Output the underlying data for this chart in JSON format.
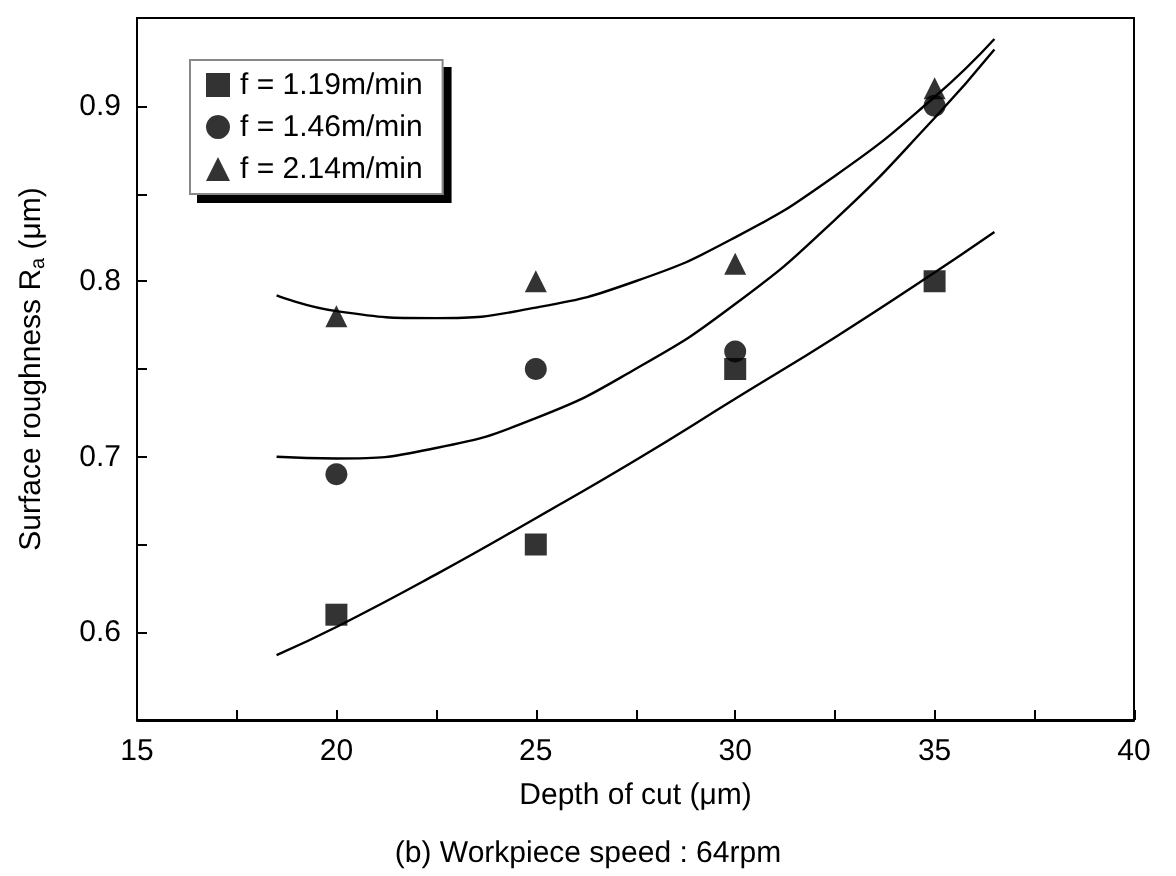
{
  "chart_data": {
    "type": "scatter",
    "xlabel": "Depth of cut (μm)",
    "ylabel": "Surface roughness R$_{a}$ (μm)",
    "annotations": [
      "(b) Workpiece speed : 64rpm"
    ],
    "xlim": [
      15,
      40
    ],
    "xticks": [
      15,
      {
        "value": 17.5,
        "label": null
      },
      20,
      {
        "value": 22.5,
        "label": null
      },
      25,
      {
        "value": 27.5,
        "label": null
      },
      30,
      {
        "value": 32.5,
        "label": null
      },
      35,
      {
        "value": 37.5,
        "label": null
      },
      40
    ],
    "ylim": [
      0.55,
      0.95
    ],
    "yticks": [
      0.6,
      {
        "value": 0.65,
        "label": null
      },
      0.7,
      {
        "value": 0.75,
        "label": null
      },
      0.8,
      {
        "value": 0.85,
        "label": null
      },
      0.9
    ],
    "legend": "top left",
    "grid": false,
    "series": [
      {
        "name": "f = 1.19m/min",
        "color": "#000000",
        "marker": "square",
        "x": [
          20,
          25,
          30,
          35
        ],
        "values": [
          0.61,
          0.65,
          0.75,
          0.8
        ]
      },
      {
        "name": "f = 1.46m/min",
        "color": "#000000",
        "marker": "circle",
        "x": [
          20,
          25,
          30,
          35
        ],
        "values": [
          0.69,
          0.75,
          0.76,
          0.9
        ]
      },
      {
        "name": "f = 2.14m/min",
        "color": "#000000",
        "marker": "triangle",
        "x": [
          20,
          25,
          30,
          35
        ],
        "values": [
          0.78,
          0.8,
          0.81,
          0.91
        ]
      },
      {
        "type": "line",
        "color": "#000000",
        "marker": "none",
        "x": [
          18.5,
          20,
          22.5,
          25,
          27.5,
          30,
          32.5,
          35,
          36.5
        ],
        "values": [
          0.587,
          0.603,
          0.633,
          0.665,
          0.698,
          0.733,
          0.768,
          0.805,
          0.828
        ]
      },
      {
        "type": "line",
        "color": "#000000",
        "marker": "none",
        "x": [
          18.5,
          20,
          22.5,
          25,
          27.5,
          30,
          32.5,
          35,
          36.5
        ],
        "values": [
          0.7,
          0.699,
          0.705,
          0.722,
          0.75,
          0.787,
          0.835,
          0.893,
          0.932
        ]
      },
      {
        "type": "line",
        "color": "#000000",
        "marker": "none",
        "x": [
          18.5,
          20,
          22.5,
          25,
          27.5,
          30,
          32.5,
          35,
          36.5
        ],
        "values": [
          0.792,
          0.783,
          0.779,
          0.785,
          0.8,
          0.825,
          0.86,
          0.905,
          0.938
        ]
      }
    ]
  }
}
